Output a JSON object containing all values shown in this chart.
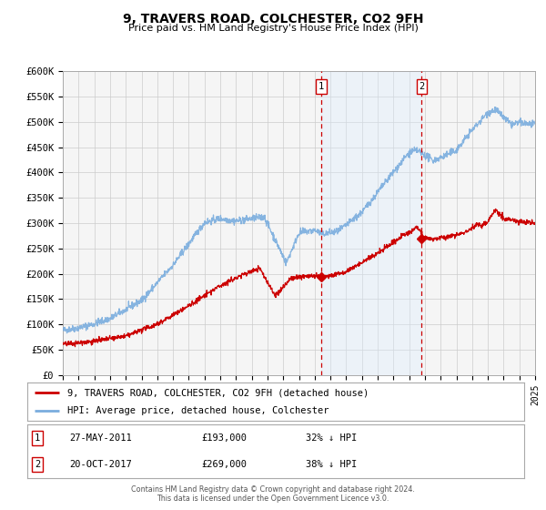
{
  "title": "9, TRAVERS ROAD, COLCHESTER, CO2 9FH",
  "subtitle": "Price paid vs. HM Land Registry's House Price Index (HPI)",
  "legend_line1": "9, TRAVERS ROAD, COLCHESTER, CO2 9FH (detached house)",
  "legend_line2": "HPI: Average price, detached house, Colchester",
  "marker1_date": "27-MAY-2011",
  "marker1_price": "£193,000",
  "marker1_hpi": "32% ↓ HPI",
  "marker1_x": 2011.41,
  "marker1_y": 193000,
  "marker2_date": "20-OCT-2017",
  "marker2_price": "£269,000",
  "marker2_hpi": "38% ↓ HPI",
  "marker2_x": 2017.8,
  "marker2_y": 269000,
  "vline1_x": 2011.41,
  "vline2_x": 2017.8,
  "xmin": 1995,
  "xmax": 2025,
  "ymin": 0,
  "ymax": 600000,
  "yticks": [
    0,
    50000,
    100000,
    150000,
    200000,
    250000,
    300000,
    350000,
    400000,
    450000,
    500000,
    550000,
    600000
  ],
  "red_color": "#cc0000",
  "blue_color": "#7aadde",
  "blue_fill_color": "#ddeeff",
  "grid_color": "#cccccc",
  "background_color": "#f5f5f5",
  "footnote_line1": "Contains HM Land Registry data © Crown copyright and database right 2024.",
  "footnote_line2": "This data is licensed under the Open Government Licence v3.0."
}
